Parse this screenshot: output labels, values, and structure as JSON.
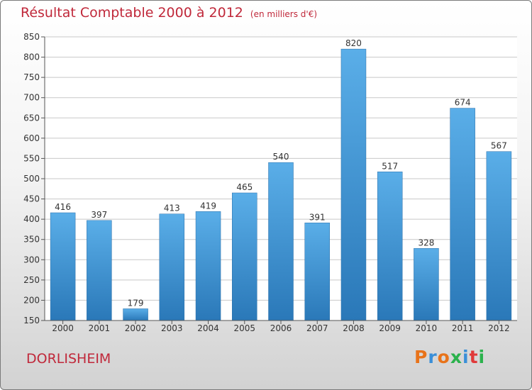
{
  "header": {
    "title": "Résultat Comptable 2000 à 2012",
    "subtitle": "(en milliers d'€)"
  },
  "footer": {
    "town": "DORLISHEIM",
    "logo": "Proxiti",
    "logo_colors": [
      "#e8731a",
      "#3a8fd8",
      "#e8731a",
      "#2bb24c",
      "#3a8fd8",
      "#e03a3a",
      "#2bb24c"
    ]
  },
  "chart_data": {
    "type": "bar",
    "title": "Résultat Comptable 2000 à 2012",
    "subtitle": "(en milliers d'€)",
    "categories": [
      "2000",
      "2001",
      "2002",
      "2003",
      "2004",
      "2005",
      "2006",
      "2007",
      "2008",
      "2009",
      "2010",
      "2011",
      "2012"
    ],
    "values": [
      416,
      397,
      179,
      413,
      419,
      465,
      540,
      391,
      820,
      517,
      328,
      674,
      567
    ],
    "xlabel": "",
    "ylabel": "",
    "ylim": [
      150,
      850
    ],
    "yticks": [
      150,
      200,
      250,
      300,
      350,
      400,
      450,
      500,
      550,
      600,
      650,
      700,
      750,
      800,
      850
    ],
    "grid": true,
    "bar_color_top": "#5aaee8",
    "bar_color_bottom": "#2a78b8"
  }
}
